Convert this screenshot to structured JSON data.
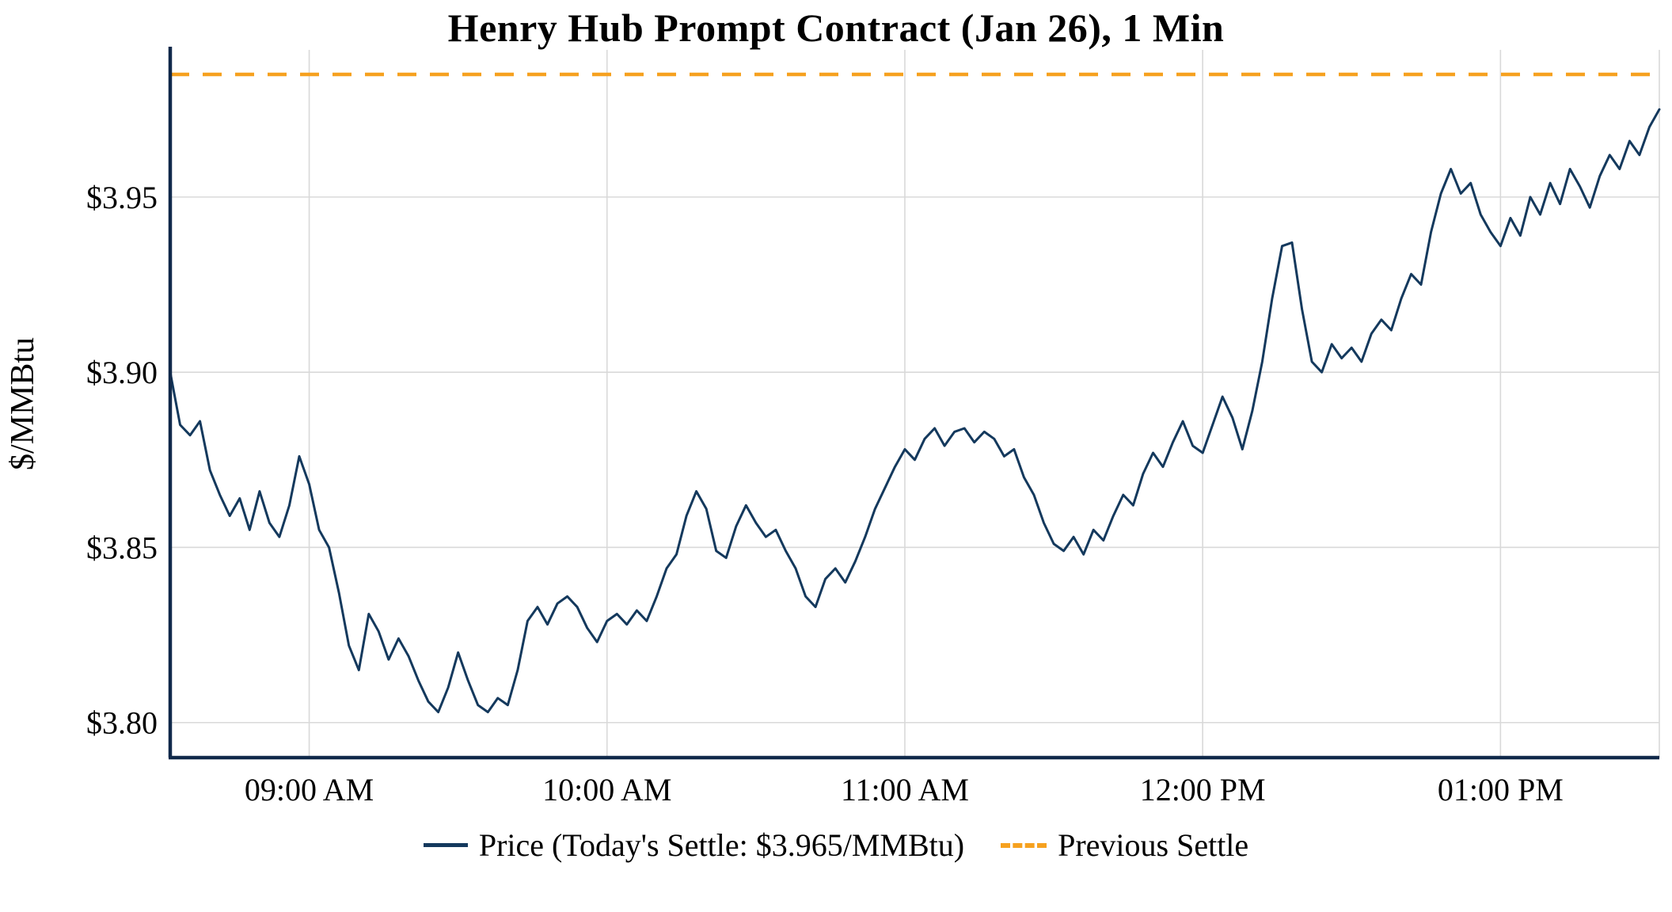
{
  "title": "Henry Hub Prompt Contract (Jan 26), 1 Min",
  "legend": {
    "price_label": "Price (Today's Settle: $3.965/MMBtu)",
    "settle_label": "Previous Settle"
  },
  "colors": {
    "price_line": "#14395d",
    "previous_settle": "#f6a11f",
    "grid": "#d9d9d9",
    "axis": "#10294a",
    "text": "#000000"
  },
  "chart_data": {
    "type": "line",
    "title": "Henry Hub Prompt Contract (Jan 26), 1 Min",
    "xlabel": "",
    "ylabel": "$/MMBtu",
    "x_unit": "minutes after 08:30 AM",
    "xlim": [
      2,
      302
    ],
    "ylim": [
      3.79,
      3.992
    ],
    "grid": true,
    "legend_position": "bottom",
    "previous_settle": 3.985,
    "todays_settle": 3.965,
    "y_ticks": [
      {
        "value": 3.8,
        "label": "$3.80"
      },
      {
        "value": 3.85,
        "label": "$3.85"
      },
      {
        "value": 3.9,
        "label": "$3.90"
      },
      {
        "value": 3.95,
        "label": "$3.95"
      }
    ],
    "x_ticks": [
      {
        "value": 30,
        "label": "09:00 AM"
      },
      {
        "value": 90,
        "label": "10:00 AM"
      },
      {
        "value": 150,
        "label": "11:00 AM"
      },
      {
        "value": 210,
        "label": "12:00 PM"
      },
      {
        "value": 270,
        "label": "01:00 PM"
      }
    ],
    "series": [
      {
        "name": "Price",
        "x": [
          2,
          4,
          6,
          8,
          10,
          12,
          14,
          16,
          18,
          20,
          22,
          24,
          26,
          28,
          30,
          32,
          34,
          36,
          38,
          40,
          42,
          44,
          46,
          48,
          50,
          52,
          54,
          56,
          58,
          60,
          62,
          64,
          66,
          68,
          70,
          72,
          74,
          76,
          78,
          80,
          82,
          84,
          86,
          88,
          90,
          92,
          94,
          96,
          98,
          100,
          102,
          104,
          106,
          108,
          110,
          112,
          114,
          116,
          118,
          120,
          122,
          124,
          126,
          128,
          130,
          132,
          134,
          136,
          138,
          140,
          142,
          144,
          146,
          148,
          150,
          152,
          154,
          156,
          158,
          160,
          162,
          164,
          166,
          168,
          170,
          172,
          174,
          176,
          178,
          180,
          182,
          184,
          186,
          188,
          190,
          192,
          194,
          196,
          198,
          200,
          202,
          204,
          206,
          208,
          210,
          212,
          214,
          216,
          218,
          220,
          222,
          224,
          226,
          228,
          230,
          232,
          234,
          236,
          238,
          240,
          242,
          244,
          246,
          248,
          250,
          252,
          254,
          256,
          258,
          260,
          262,
          264,
          266,
          268,
          270,
          272,
          274,
          276,
          278,
          280,
          282,
          284,
          286,
          288,
          290,
          292,
          294,
          296,
          298,
          300,
          302
        ],
        "values": [
          3.9,
          3.885,
          3.882,
          3.886,
          3.872,
          3.865,
          3.859,
          3.864,
          3.855,
          3.866,
          3.857,
          3.853,
          3.862,
          3.876,
          3.868,
          3.855,
          3.85,
          3.837,
          3.822,
          3.815,
          3.831,
          3.826,
          3.818,
          3.824,
          3.819,
          3.812,
          3.806,
          3.803,
          3.81,
          3.82,
          3.812,
          3.805,
          3.803,
          3.807,
          3.805,
          3.815,
          3.829,
          3.833,
          3.828,
          3.834,
          3.836,
          3.833,
          3.827,
          3.823,
          3.829,
          3.831,
          3.828,
          3.832,
          3.829,
          3.836,
          3.844,
          3.848,
          3.859,
          3.866,
          3.861,
          3.849,
          3.847,
          3.856,
          3.862,
          3.857,
          3.853,
          3.855,
          3.849,
          3.844,
          3.836,
          3.833,
          3.841,
          3.844,
          3.84,
          3.846,
          3.853,
          3.861,
          3.867,
          3.873,
          3.878,
          3.875,
          3.881,
          3.884,
          3.879,
          3.883,
          3.884,
          3.88,
          3.883,
          3.881,
          3.876,
          3.878,
          3.87,
          3.865,
          3.857,
          3.851,
          3.849,
          3.853,
          3.848,
          3.855,
          3.852,
          3.859,
          3.865,
          3.862,
          3.871,
          3.877,
          3.873,
          3.88,
          3.886,
          3.879,
          3.877,
          3.885,
          3.893,
          3.887,
          3.878,
          3.889,
          3.903,
          3.921,
          3.936,
          3.937,
          3.918,
          3.903,
          3.9,
          3.908,
          3.904,
          3.907,
          3.903,
          3.911,
          3.915,
          3.912,
          3.921,
          3.928,
          3.925,
          3.94,
          3.951,
          3.958,
          3.951,
          3.954,
          3.945,
          3.94,
          3.936,
          3.944,
          3.939,
          3.95,
          3.945,
          3.954,
          3.948,
          3.958,
          3.953,
          3.947,
          3.956,
          3.962,
          3.958,
          3.966,
          3.962,
          3.97,
          3.975
        ]
      }
    ]
  }
}
